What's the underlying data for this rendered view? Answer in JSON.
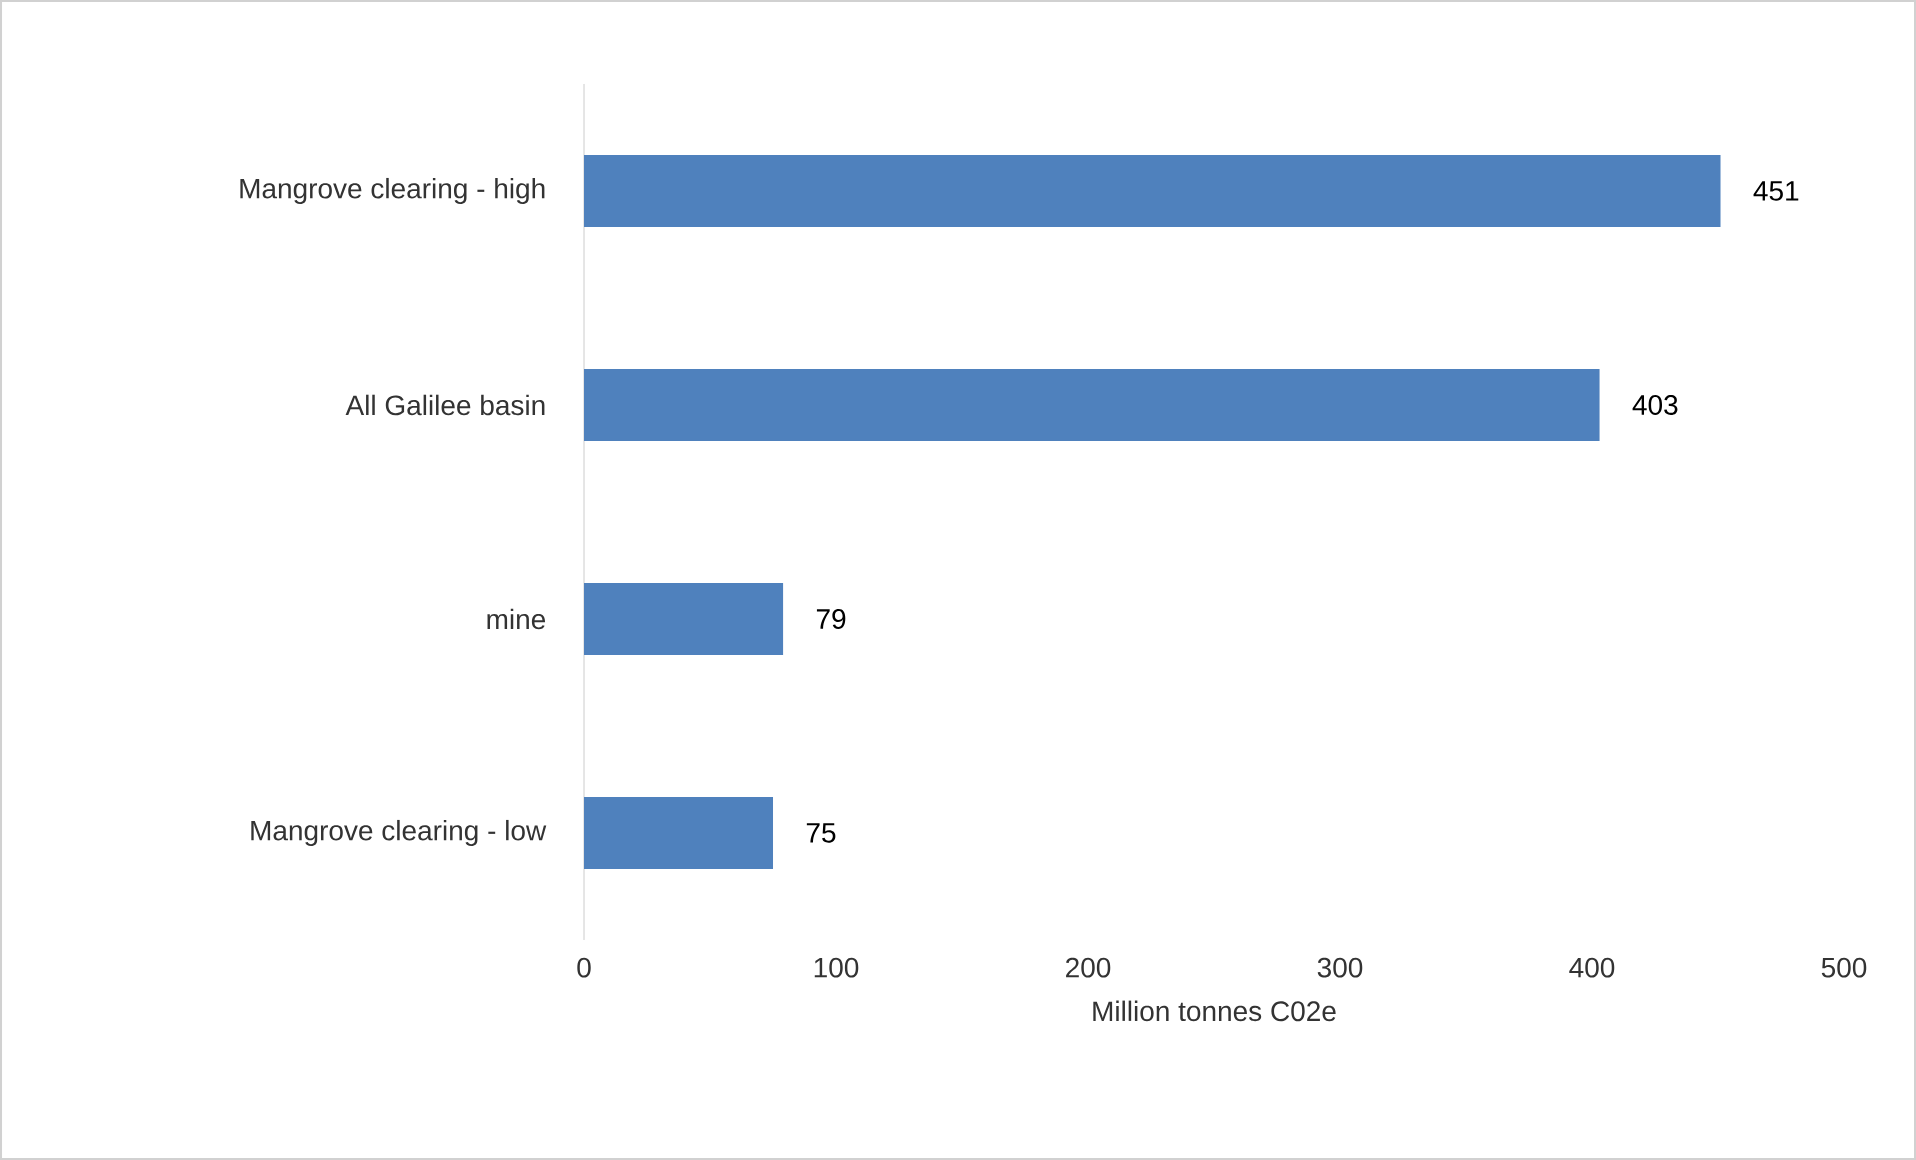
{
  "chart_data": {
    "type": "bar",
    "orientation": "horizontal",
    "categories": [
      "Mangrove clearing - high",
      "All Galilee basin",
      "mine",
      "Mangrove clearing - low"
    ],
    "values": [
      451,
      403,
      79,
      75
    ],
    "color": "#4f81bd",
    "xlim": [
      0,
      500
    ],
    "xticks": [
      0,
      100,
      200,
      300,
      400,
      500
    ],
    "xlabel": "Million tonnes C02e",
    "data_labels": true,
    "grid": false
  }
}
